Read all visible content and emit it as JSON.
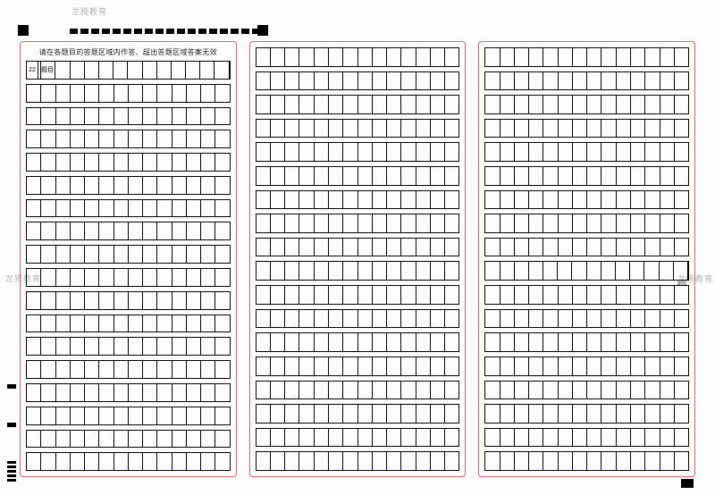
{
  "watermark": "龙腾教育",
  "instruction": "请在各题目的答题区域内作答、超出答题区域答案无效",
  "question_number": "22",
  "question_label": "题目",
  "count_marker": "800",
  "layout": {
    "panels": 3,
    "rows_per_panel": 18,
    "cells_per_row": 14,
    "timing_marks": 18,
    "side_mark_groups": 2,
    "stack_marks": 5
  },
  "colors": {
    "panel_border": "#d66",
    "grid_line": "#000000",
    "watermark": "#b8b8b8",
    "background": "#fdfdfd"
  },
  "panel1_first_row_has_label": true,
  "panel3_count_row_index": 9
}
